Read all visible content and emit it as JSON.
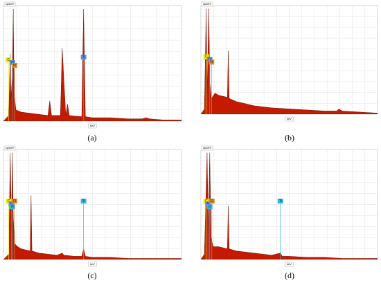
{
  "chart_data": [
    {
      "type": "spectrum",
      "y_label": "cps/eV",
      "x_label": "keV",
      "caption": "(a)",
      "color": "#c41a00",
      "xlim": [
        0,
        10
      ],
      "ylim": [
        0,
        100
      ],
      "x": [
        0,
        0.3,
        0.38,
        0.42,
        0.5,
        0.55,
        0.6,
        0.7,
        1,
        1.5,
        2,
        2.5,
        2.6,
        2.7,
        3.1,
        3.2,
        3.3,
        3.5,
        3.6,
        3.7,
        4.3,
        4.4,
        4.5,
        4.6,
        5,
        6,
        7,
        7.8,
        8,
        8.2,
        9,
        10
      ],
      "values": [
        0,
        5,
        60,
        20,
        40,
        100,
        25,
        10,
        8,
        7,
        6,
        5,
        18,
        5,
        5,
        5,
        65,
        5,
        15,
        5,
        4,
        4,
        100,
        4,
        3,
        3,
        2,
        2,
        3,
        2,
        1,
        1
      ],
      "labels": [
        {
          "text": "C",
          "x": 0.28,
          "color": "#f2e600"
        },
        {
          "text": "O",
          "x": 0.5,
          "color": "#5b8fd9"
        },
        {
          "text": "N",
          "x": 0.62,
          "color": "#e0892b"
        },
        {
          "text": "Ti",
          "x": 4.5,
          "color": "#5b8fd9"
        }
      ]
    },
    {
      "type": "spectrum",
      "y_label": "cps/eV",
      "x_label": "keV",
      "caption": "(b)",
      "color": "#c41a00",
      "xlim": [
        0,
        10
      ],
      "ylim": [
        0,
        100
      ],
      "x": [
        0,
        0.2,
        0.3,
        0.35,
        0.45,
        0.5,
        0.6,
        0.8,
        1,
        1.5,
        1.55,
        1.6,
        2,
        3,
        4,
        5,
        6,
        7,
        7.7,
        7.8,
        8,
        9,
        10
      ],
      "values": [
        0,
        5,
        100,
        20,
        100,
        30,
        15,
        20,
        18,
        16,
        60,
        15,
        12,
        8,
        6,
        5,
        4,
        3,
        3,
        5,
        3,
        2,
        1
      ],
      "labels": [
        {
          "text": "C",
          "x": 0.3,
          "color": "#f2e600"
        },
        {
          "text": "O",
          "x": 0.5,
          "color": "#5b8fd9"
        },
        {
          "text": "N",
          "x": 0.6,
          "color": "#e0892b"
        }
      ]
    },
    {
      "type": "spectrum",
      "y_label": "cps/eV",
      "x_label": "keV",
      "caption": "(c)",
      "color": "#c41a00",
      "xlim": [
        0,
        10
      ],
      "ylim": [
        0,
        100
      ],
      "x": [
        0,
        0.3,
        0.38,
        0.45,
        0.5,
        0.55,
        0.62,
        0.8,
        1,
        1.5,
        1.55,
        1.6,
        2,
        3,
        3.3,
        3.4,
        4,
        4.4,
        4.5,
        4.6,
        5,
        6,
        7,
        8,
        9,
        10
      ],
      "values": [
        0,
        5,
        100,
        30,
        100,
        40,
        15,
        12,
        10,
        8,
        60,
        8,
        6,
        4,
        6,
        4,
        3,
        3,
        10,
        3,
        2,
        2,
        1,
        1,
        1,
        1
      ],
      "labels": [
        {
          "text": "C",
          "x": 0.3,
          "color": "#f2e600"
        },
        {
          "text": "O",
          "x": 0.45,
          "color": "#5b8fd9"
        },
        {
          "text": "N",
          "x": 0.5,
          "color": "#36b4e6"
        },
        {
          "text": "Cl",
          "x": 0.62,
          "color": "#e0892b"
        },
        {
          "text": "Ti",
          "x": 4.5,
          "color": "#36b4e6"
        }
      ]
    },
    {
      "type": "spectrum",
      "y_label": "cps/eV",
      "x_label": "keV",
      "caption": "(d)",
      "color": "#c41a00",
      "xlim": [
        0,
        10
      ],
      "ylim": [
        0,
        100
      ],
      "x": [
        0,
        0.2,
        0.35,
        0.42,
        0.5,
        0.58,
        0.7,
        1,
        1.5,
        1.55,
        1.6,
        2,
        3,
        4,
        4.5,
        4.6,
        5,
        6,
        7,
        8,
        9,
        10
      ],
      "values": [
        0,
        5,
        100,
        30,
        100,
        20,
        12,
        12,
        10,
        50,
        10,
        8,
        6,
        4,
        6,
        3,
        3,
        2,
        2,
        1,
        1,
        1
      ],
      "labels": [
        {
          "text": "C",
          "x": 0.3,
          "color": "#f2e600"
        },
        {
          "text": "N",
          "x": 0.4,
          "color": "#5b8fd9"
        },
        {
          "text": "O",
          "x": 0.5,
          "color": "#36b4e6"
        },
        {
          "text": "Cl",
          "x": 0.62,
          "color": "#e0892b"
        },
        {
          "text": "Ti",
          "x": 4.5,
          "color": "#36b4e6"
        }
      ]
    }
  ]
}
